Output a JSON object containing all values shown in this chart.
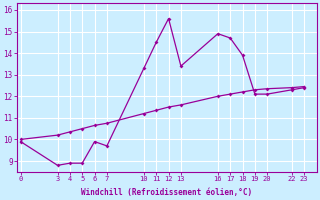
{
  "xlabel": "Windchill (Refroidissement éolien,°C)",
  "background_color": "#cceeff",
  "grid_color": "#ffffff",
  "line_color": "#990099",
  "x_ticks": [
    0,
    3,
    4,
    5,
    6,
    7,
    10,
    11,
    12,
    13,
    16,
    17,
    18,
    19,
    20,
    22,
    23
  ],
  "yticks": [
    9,
    10,
    11,
    12,
    13,
    14,
    15,
    16
  ],
  "ylim": [
    8.5,
    16.3
  ],
  "xlim": [
    -0.3,
    24.0
  ],
  "series1_x": [
    0,
    3,
    4,
    5,
    6,
    7,
    10,
    11,
    12,
    13,
    16,
    17,
    18,
    19,
    20,
    22,
    23
  ],
  "series1_y": [
    9.9,
    8.8,
    8.9,
    8.9,
    9.9,
    9.7,
    13.3,
    14.5,
    15.6,
    13.4,
    14.9,
    14.7,
    13.9,
    12.1,
    12.1,
    12.3,
    12.4
  ],
  "series2_x": [
    0,
    3,
    4,
    5,
    6,
    7,
    10,
    11,
    12,
    13,
    16,
    17,
    18,
    19,
    20,
    22,
    23
  ],
  "series2_y": [
    10.0,
    10.2,
    10.35,
    10.5,
    10.65,
    10.75,
    11.2,
    11.35,
    11.5,
    11.6,
    12.0,
    12.1,
    12.2,
    12.3,
    12.35,
    12.4,
    12.45
  ]
}
